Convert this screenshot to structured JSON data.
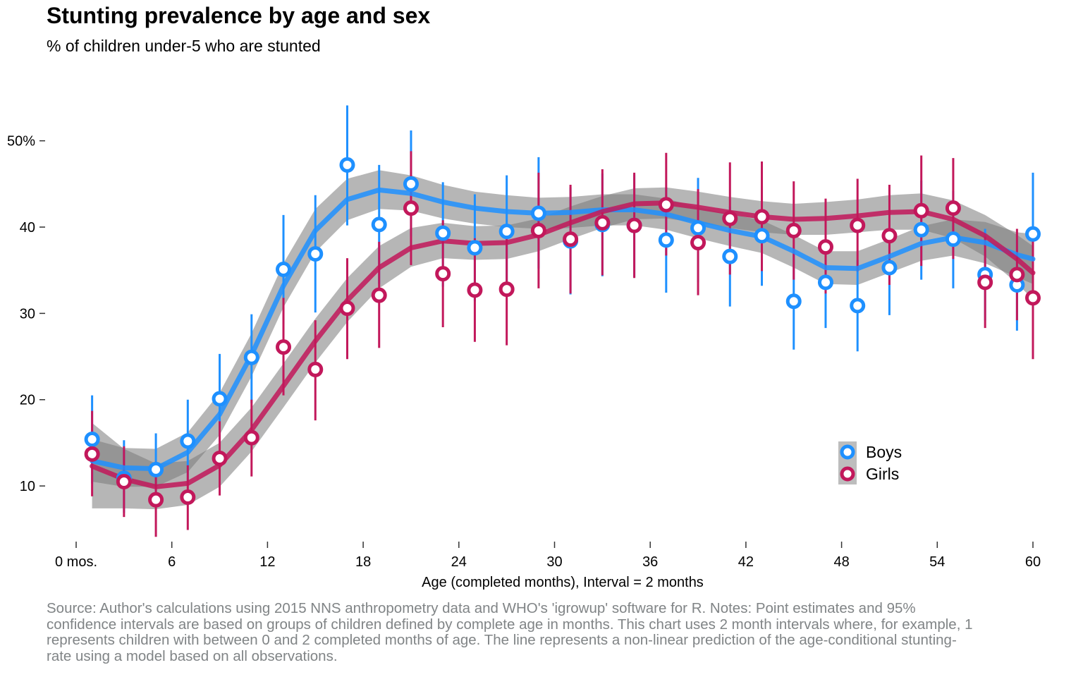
{
  "chart_data": {
    "type": "scatter",
    "title": "Stunting prevalence by age and sex",
    "subtitle": "% of children under-5 who are stunted",
    "xlabel": "Age (completed months), Interval = 2 months",
    "ylabel": "",
    "xlim": [
      0,
      60
    ],
    "ylim": [
      2,
      57
    ],
    "x_ticks": [
      0,
      6,
      12,
      18,
      24,
      30,
      36,
      42,
      48,
      54,
      60
    ],
    "x_tick_labels": [
      "0 mos.",
      "6",
      "12",
      "18",
      "24",
      "30",
      "36",
      "42",
      "48",
      "54",
      "60"
    ],
    "y_ticks": [
      10,
      20,
      30,
      40,
      50
    ],
    "y_tick_labels": [
      "10",
      "20",
      "30",
      "40",
      "50%"
    ],
    "grid": false,
    "legend_position": "bottom-right",
    "source": "Source: Author's calculations using 2015 NNS anthropometry data and WHO's 'igrowup' software for R. Notes: Point estimates and 95% confidence intervals are based on groups of children defined by complete age in months. This chart uses 2 month intervals where, for example, 1 represents children with between 0 and 2 completed months of age. The line represents a non-linear prediction of the age-conditional stunting-rate using a model based on all observations.",
    "series": [
      {
        "name": "Boys",
        "color": "#1e90ff",
        "points": [
          {
            "x": 1,
            "y": 15.4,
            "lo": 10.3,
            "hi": 20.5
          },
          {
            "x": 3,
            "y": 10.9,
            "lo": 6.9,
            "hi": 15.3
          },
          {
            "x": 5,
            "y": 11.9,
            "lo": 7.8,
            "hi": 16.1
          },
          {
            "x": 7,
            "y": 15.2,
            "lo": 10.5,
            "hi": 20.0
          },
          {
            "x": 9,
            "y": 20.1,
            "lo": 15.1,
            "hi": 25.3
          },
          {
            "x": 11,
            "y": 24.9,
            "lo": 19.6,
            "hi": 29.9
          },
          {
            "x": 13,
            "y": 35.1,
            "lo": 28.8,
            "hi": 41.4
          },
          {
            "x": 15,
            "y": 36.9,
            "lo": 30.1,
            "hi": 43.7
          },
          {
            "x": 17,
            "y": 47.2,
            "lo": 40.2,
            "hi": 54.1
          },
          {
            "x": 19,
            "y": 40.3,
            "lo": 33.4,
            "hi": 47.2
          },
          {
            "x": 21,
            "y": 45.0,
            "lo": 38.9,
            "hi": 51.2
          },
          {
            "x": 23,
            "y": 39.3,
            "lo": 33.1,
            "hi": 45.2
          },
          {
            "x": 25,
            "y": 37.6,
            "lo": 31.4,
            "hi": 43.8
          },
          {
            "x": 27,
            "y": 39.5,
            "lo": 33.0,
            "hi": 46.0
          },
          {
            "x": 29,
            "y": 41.6,
            "lo": 35.2,
            "hi": 48.1
          },
          {
            "x": 31,
            "y": 38.4,
            "lo": 32.2,
            "hi": 44.6
          },
          {
            "x": 33,
            "y": 40.3,
            "lo": 34.3,
            "hi": 46.2
          },
          {
            "x": 35,
            "y": 40.2,
            "lo": 34.2,
            "hi": 46.1
          },
          {
            "x": 37,
            "y": 38.5,
            "lo": 32.4,
            "hi": 44.6
          },
          {
            "x": 39,
            "y": 39.9,
            "lo": 33.6,
            "hi": 45.7
          },
          {
            "x": 41,
            "y": 36.6,
            "lo": 30.8,
            "hi": 42.4
          },
          {
            "x": 43,
            "y": 39.0,
            "lo": 33.2,
            "hi": 44.7
          },
          {
            "x": 45,
            "y": 31.4,
            "lo": 25.8,
            "hi": 37.0
          },
          {
            "x": 47,
            "y": 33.6,
            "lo": 28.3,
            "hi": 38.8
          },
          {
            "x": 49,
            "y": 30.9,
            "lo": 25.6,
            "hi": 36.2
          },
          {
            "x": 51,
            "y": 35.3,
            "lo": 29.8,
            "hi": 40.8
          },
          {
            "x": 53,
            "y": 39.7,
            "lo": 33.9,
            "hi": 45.4
          },
          {
            "x": 55,
            "y": 38.6,
            "lo": 32.9,
            "hi": 44.2
          },
          {
            "x": 57,
            "y": 34.5,
            "lo": 29.2,
            "hi": 39.8
          },
          {
            "x": 59,
            "y": 33.3,
            "lo": 28.0,
            "hi": 38.5
          },
          {
            "x": 60,
            "y": 39.2,
            "lo": 32.1,
            "hi": 46.3
          }
        ],
        "smooth": [
          {
            "x": 1,
            "y": 12.9
          },
          {
            "x": 3,
            "y": 12.1
          },
          {
            "x": 5,
            "y": 12.0
          },
          {
            "x": 7,
            "y": 13.9
          },
          {
            "x": 9,
            "y": 18.3
          },
          {
            "x": 11,
            "y": 25.2
          },
          {
            "x": 13,
            "y": 33.2
          },
          {
            "x": 15,
            "y": 39.6
          },
          {
            "x": 17,
            "y": 43.2
          },
          {
            "x": 19,
            "y": 44.3
          },
          {
            "x": 21,
            "y": 43.9
          },
          {
            "x": 23,
            "y": 42.9
          },
          {
            "x": 25,
            "y": 42.2
          },
          {
            "x": 27,
            "y": 41.8
          },
          {
            "x": 29,
            "y": 41.6
          },
          {
            "x": 31,
            "y": 41.7
          },
          {
            "x": 33,
            "y": 42.0
          },
          {
            "x": 35,
            "y": 42.0
          },
          {
            "x": 37,
            "y": 41.5
          },
          {
            "x": 39,
            "y": 40.5
          },
          {
            "x": 41,
            "y": 39.6
          },
          {
            "x": 43,
            "y": 38.9
          },
          {
            "x": 45,
            "y": 37.2
          },
          {
            "x": 47,
            "y": 35.3
          },
          {
            "x": 49,
            "y": 35.2
          },
          {
            "x": 51,
            "y": 36.6
          },
          {
            "x": 53,
            "y": 38.1
          },
          {
            "x": 55,
            "y": 38.8
          },
          {
            "x": 57,
            "y": 38.2
          },
          {
            "x": 59,
            "y": 36.8
          },
          {
            "x": 60,
            "y": 36.3
          }
        ],
        "band": [
          {
            "x": 1,
            "lo": 10.5,
            "hi": 15.4
          },
          {
            "x": 3,
            "lo": 9.9,
            "hi": 14.4
          },
          {
            "x": 5,
            "lo": 9.9,
            "hi": 14.3
          },
          {
            "x": 7,
            "lo": 11.6,
            "hi": 16.2
          },
          {
            "x": 9,
            "lo": 15.9,
            "hi": 20.8
          },
          {
            "x": 11,
            "lo": 22.7,
            "hi": 27.7
          },
          {
            "x": 13,
            "lo": 30.7,
            "hi": 35.8
          },
          {
            "x": 15,
            "lo": 37.1,
            "hi": 42.1
          },
          {
            "x": 17,
            "lo": 40.8,
            "hi": 45.6
          },
          {
            "x": 19,
            "lo": 42.1,
            "hi": 46.6
          },
          {
            "x": 21,
            "lo": 41.9,
            "hi": 46.0
          },
          {
            "x": 23,
            "lo": 41.0,
            "hi": 44.9
          },
          {
            "x": 25,
            "lo": 40.4,
            "hi": 44.1
          },
          {
            "x": 27,
            "lo": 40.0,
            "hi": 43.7
          },
          {
            "x": 29,
            "lo": 39.8,
            "hi": 43.4
          },
          {
            "x": 31,
            "lo": 39.9,
            "hi": 43.5
          },
          {
            "x": 33,
            "lo": 40.2,
            "hi": 43.8
          },
          {
            "x": 35,
            "lo": 40.2,
            "hi": 43.8
          },
          {
            "x": 37,
            "lo": 39.7,
            "hi": 43.3
          },
          {
            "x": 39,
            "lo": 38.7,
            "hi": 42.3
          },
          {
            "x": 41,
            "lo": 37.8,
            "hi": 41.5
          },
          {
            "x": 43,
            "lo": 37.0,
            "hi": 40.8
          },
          {
            "x": 45,
            "lo": 35.3,
            "hi": 39.1
          },
          {
            "x": 47,
            "lo": 33.4,
            "hi": 37.2
          },
          {
            "x": 49,
            "lo": 33.3,
            "hi": 37.2
          },
          {
            "x": 51,
            "lo": 34.7,
            "hi": 38.6
          },
          {
            "x": 53,
            "lo": 36.1,
            "hi": 40.1
          },
          {
            "x": 55,
            "lo": 36.7,
            "hi": 40.9
          },
          {
            "x": 57,
            "lo": 35.8,
            "hi": 40.6
          },
          {
            "x": 59,
            "lo": 34.2,
            "hi": 39.4
          },
          {
            "x": 60,
            "lo": 33.4,
            "hi": 39.2
          }
        ]
      },
      {
        "name": "Girls",
        "color": "#c2185b",
        "points": [
          {
            "x": 1,
            "y": 13.7,
            "lo": 8.8,
            "hi": 18.7
          },
          {
            "x": 3,
            "y": 10.5,
            "lo": 6.4,
            "hi": 14.6
          },
          {
            "x": 5,
            "y": 8.4,
            "lo": 4.1,
            "hi": 12.8
          },
          {
            "x": 7,
            "y": 8.7,
            "lo": 4.9,
            "hi": 12.4
          },
          {
            "x": 9,
            "y": 13.2,
            "lo": 8.9,
            "hi": 17.5
          },
          {
            "x": 11,
            "y": 15.6,
            "lo": 11.1,
            "hi": 20.0
          },
          {
            "x": 13,
            "y": 26.1,
            "lo": 20.5,
            "hi": 31.8
          },
          {
            "x": 15,
            "y": 23.5,
            "lo": 17.6,
            "hi": 29.2
          },
          {
            "x": 17,
            "y": 30.6,
            "lo": 24.7,
            "hi": 36.4
          },
          {
            "x": 19,
            "y": 32.1,
            "lo": 26.0,
            "hi": 38.3
          },
          {
            "x": 21,
            "y": 42.2,
            "lo": 35.6,
            "hi": 48.8
          },
          {
            "x": 23,
            "y": 34.6,
            "lo": 28.4,
            "hi": 40.8
          },
          {
            "x": 25,
            "y": 32.7,
            "lo": 26.7,
            "hi": 38.7
          },
          {
            "x": 27,
            "y": 32.8,
            "lo": 26.3,
            "hi": 39.3
          },
          {
            "x": 29,
            "y": 39.6,
            "lo": 32.9,
            "hi": 46.3
          },
          {
            "x": 31,
            "y": 38.6,
            "lo": 32.3,
            "hi": 44.9
          },
          {
            "x": 33,
            "y": 40.5,
            "lo": 34.4,
            "hi": 46.7
          },
          {
            "x": 35,
            "y": 40.2,
            "lo": 34.1,
            "hi": 46.3
          },
          {
            "x": 37,
            "y": 42.6,
            "lo": 36.7,
            "hi": 48.6
          },
          {
            "x": 39,
            "y": 38.2,
            "lo": 32.1,
            "hi": 44.4
          },
          {
            "x": 41,
            "y": 41.0,
            "lo": 34.5,
            "hi": 47.5
          },
          {
            "x": 43,
            "y": 41.2,
            "lo": 34.9,
            "hi": 47.6
          },
          {
            "x": 45,
            "y": 39.6,
            "lo": 33.9,
            "hi": 45.3
          },
          {
            "x": 47,
            "y": 37.7,
            "lo": 32.3,
            "hi": 43.3
          },
          {
            "x": 49,
            "y": 40.2,
            "lo": 34.9,
            "hi": 45.6
          },
          {
            "x": 51,
            "y": 39.0,
            "lo": 33.3,
            "hi": 44.9
          },
          {
            "x": 53,
            "y": 41.9,
            "lo": 35.5,
            "hi": 48.3
          },
          {
            "x": 55,
            "y": 42.2,
            "lo": 36.3,
            "hi": 48.0
          },
          {
            "x": 57,
            "y": 33.6,
            "lo": 28.3,
            "hi": 38.9
          },
          {
            "x": 59,
            "y": 34.5,
            "lo": 29.2,
            "hi": 39.8
          },
          {
            "x": 60,
            "y": 31.8,
            "lo": 24.7,
            "hi": 38.9
          }
        ],
        "smooth": [
          {
            "x": 1,
            "y": 12.3
          },
          {
            "x": 3,
            "y": 10.8
          },
          {
            "x": 5,
            "y": 9.9
          },
          {
            "x": 7,
            "y": 10.3
          },
          {
            "x": 9,
            "y": 12.4
          },
          {
            "x": 11,
            "y": 16.5
          },
          {
            "x": 13,
            "y": 21.6
          },
          {
            "x": 15,
            "y": 26.8
          },
          {
            "x": 17,
            "y": 31.5
          },
          {
            "x": 19,
            "y": 35.3
          },
          {
            "x": 21,
            "y": 37.6
          },
          {
            "x": 23,
            "y": 38.4
          },
          {
            "x": 25,
            "y": 38.1
          },
          {
            "x": 27,
            "y": 38.2
          },
          {
            "x": 29,
            "y": 39.1
          },
          {
            "x": 31,
            "y": 40.5
          },
          {
            "x": 33,
            "y": 41.8
          },
          {
            "x": 35,
            "y": 42.7
          },
          {
            "x": 37,
            "y": 42.8
          },
          {
            "x": 39,
            "y": 42.3
          },
          {
            "x": 41,
            "y": 41.7
          },
          {
            "x": 43,
            "y": 41.2
          },
          {
            "x": 45,
            "y": 40.9
          },
          {
            "x": 47,
            "y": 41.0
          },
          {
            "x": 49,
            "y": 41.3
          },
          {
            "x": 51,
            "y": 41.7
          },
          {
            "x": 53,
            "y": 41.8
          },
          {
            "x": 55,
            "y": 40.9
          },
          {
            "x": 57,
            "y": 39.0
          },
          {
            "x": 59,
            "y": 36.3
          },
          {
            "x": 60,
            "y": 34.7
          }
        ],
        "band": [
          {
            "x": 1,
            "lo": 7.4,
            "hi": 17.3
          },
          {
            "x": 3,
            "lo": 7.4,
            "hi": 14.3
          },
          {
            "x": 5,
            "lo": 7.3,
            "hi": 12.6
          },
          {
            "x": 7,
            "lo": 7.8,
            "hi": 12.9
          },
          {
            "x": 9,
            "lo": 9.9,
            "hi": 15.0
          },
          {
            "x": 11,
            "lo": 14.0,
            "hi": 19.1
          },
          {
            "x": 13,
            "lo": 19.1,
            "hi": 24.2
          },
          {
            "x": 15,
            "lo": 24.3,
            "hi": 29.4
          },
          {
            "x": 17,
            "lo": 29.0,
            "hi": 34.1
          },
          {
            "x": 19,
            "lo": 32.9,
            "hi": 37.8
          },
          {
            "x": 21,
            "lo": 35.4,
            "hi": 39.9
          },
          {
            "x": 23,
            "lo": 36.4,
            "hi": 40.5
          },
          {
            "x": 25,
            "lo": 36.2,
            "hi": 40.1
          },
          {
            "x": 27,
            "lo": 36.3,
            "hi": 40.2
          },
          {
            "x": 29,
            "lo": 37.2,
            "hi": 41.0
          },
          {
            "x": 31,
            "lo": 38.6,
            "hi": 42.4
          },
          {
            "x": 33,
            "lo": 39.9,
            "hi": 43.6
          },
          {
            "x": 35,
            "lo": 40.9,
            "hi": 44.5
          },
          {
            "x": 37,
            "lo": 41.0,
            "hi": 44.6
          },
          {
            "x": 39,
            "lo": 40.5,
            "hi": 44.1
          },
          {
            "x": 41,
            "lo": 39.9,
            "hi": 43.5
          },
          {
            "x": 43,
            "lo": 39.4,
            "hi": 43.0
          },
          {
            "x": 45,
            "lo": 39.1,
            "hi": 42.7
          },
          {
            "x": 47,
            "lo": 39.1,
            "hi": 42.9
          },
          {
            "x": 49,
            "lo": 39.4,
            "hi": 43.2
          },
          {
            "x": 51,
            "lo": 39.7,
            "hi": 43.7
          },
          {
            "x": 53,
            "lo": 39.7,
            "hi": 43.9
          },
          {
            "x": 55,
            "lo": 38.7,
            "hi": 43.1
          },
          {
            "x": 57,
            "lo": 36.6,
            "hi": 41.4
          },
          {
            "x": 59,
            "lo": 33.5,
            "hi": 39.1
          },
          {
            "x": 60,
            "lo": 31.6,
            "hi": 37.8
          }
        ]
      }
    ]
  }
}
